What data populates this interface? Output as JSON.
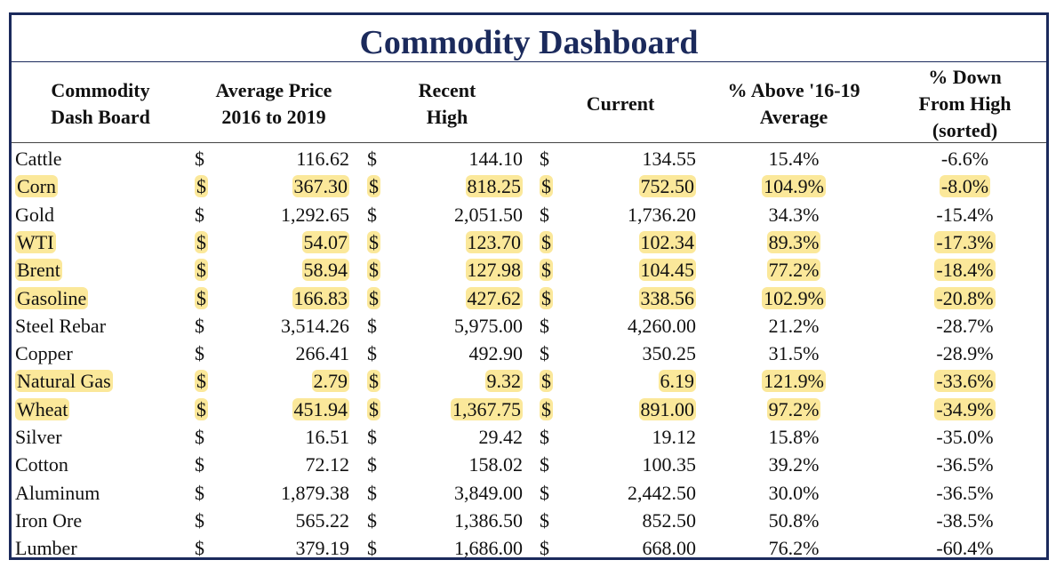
{
  "title": "Commodity Dashboard",
  "headers": [
    "Commodity\nDash Board",
    "Average Price\n2016 to 2019",
    "Recent\nHigh",
    "Current",
    "% Above '16-19\nAverage",
    "% Down\nFrom High\n(sorted)"
  ],
  "currency_symbol": "$",
  "highlight_color": "#fbe89a",
  "rows": [
    {
      "name": "Cattle",
      "avg": "116.62",
      "high": "144.10",
      "current": "134.55",
      "above": "15.4%",
      "down": "-6.6%",
      "highlight": false
    },
    {
      "name": "Corn",
      "avg": "367.30",
      "high": "818.25",
      "current": "752.50",
      "above": "104.9%",
      "down": "-8.0%",
      "highlight": true
    },
    {
      "name": "Gold",
      "avg": "1,292.65",
      "high": "2,051.50",
      "current": "1,736.20",
      "above": "34.3%",
      "down": "-15.4%",
      "highlight": false
    },
    {
      "name": "WTI",
      "avg": "54.07",
      "high": "123.70",
      "current": "102.34",
      "above": "89.3%",
      "down": "-17.3%",
      "highlight": true
    },
    {
      "name": "Brent",
      "avg": "58.94",
      "high": "127.98",
      "current": "104.45",
      "above": "77.2%",
      "down": "-18.4%",
      "highlight": true
    },
    {
      "name": "Gasoline",
      "avg": "166.83",
      "high": "427.62",
      "current": "338.56",
      "above": "102.9%",
      "down": "-20.8%",
      "highlight": true
    },
    {
      "name": "Steel Rebar",
      "avg": "3,514.26",
      "high": "5,975.00",
      "current": "4,260.00",
      "above": "21.2%",
      "down": "-28.7%",
      "highlight": false
    },
    {
      "name": "Copper",
      "avg": "266.41",
      "high": "492.90",
      "current": "350.25",
      "above": "31.5%",
      "down": "-28.9%",
      "highlight": false
    },
    {
      "name": "Natural Gas",
      "avg": "2.79",
      "high": "9.32",
      "current": "6.19",
      "above": "121.9%",
      "down": "-33.6%",
      "highlight": true
    },
    {
      "name": "Wheat",
      "avg": "451.94",
      "high": "1,367.75",
      "current": "891.00",
      "above": "97.2%",
      "down": "-34.9%",
      "highlight": true
    },
    {
      "name": "Silver",
      "avg": "16.51",
      "high": "29.42",
      "current": "19.12",
      "above": "15.8%",
      "down": "-35.0%",
      "highlight": false
    },
    {
      "name": "Cotton",
      "avg": "72.12",
      "high": "158.02",
      "current": "100.35",
      "above": "39.2%",
      "down": "-36.5%",
      "highlight": false
    },
    {
      "name": "Aluminum",
      "avg": "1,879.38",
      "high": "3,849.00",
      "current": "2,442.50",
      "above": "30.0%",
      "down": "-36.5%",
      "highlight": false
    },
    {
      "name": "Iron Ore",
      "avg": "565.22",
      "high": "1,386.50",
      "current": "852.50",
      "above": "50.8%",
      "down": "-38.5%",
      "highlight": false
    },
    {
      "name": "Lumber",
      "avg": "379.19",
      "high": "1,686.00",
      "current": "668.00",
      "above": "76.2%",
      "down": "-60.4%",
      "highlight": false
    }
  ]
}
